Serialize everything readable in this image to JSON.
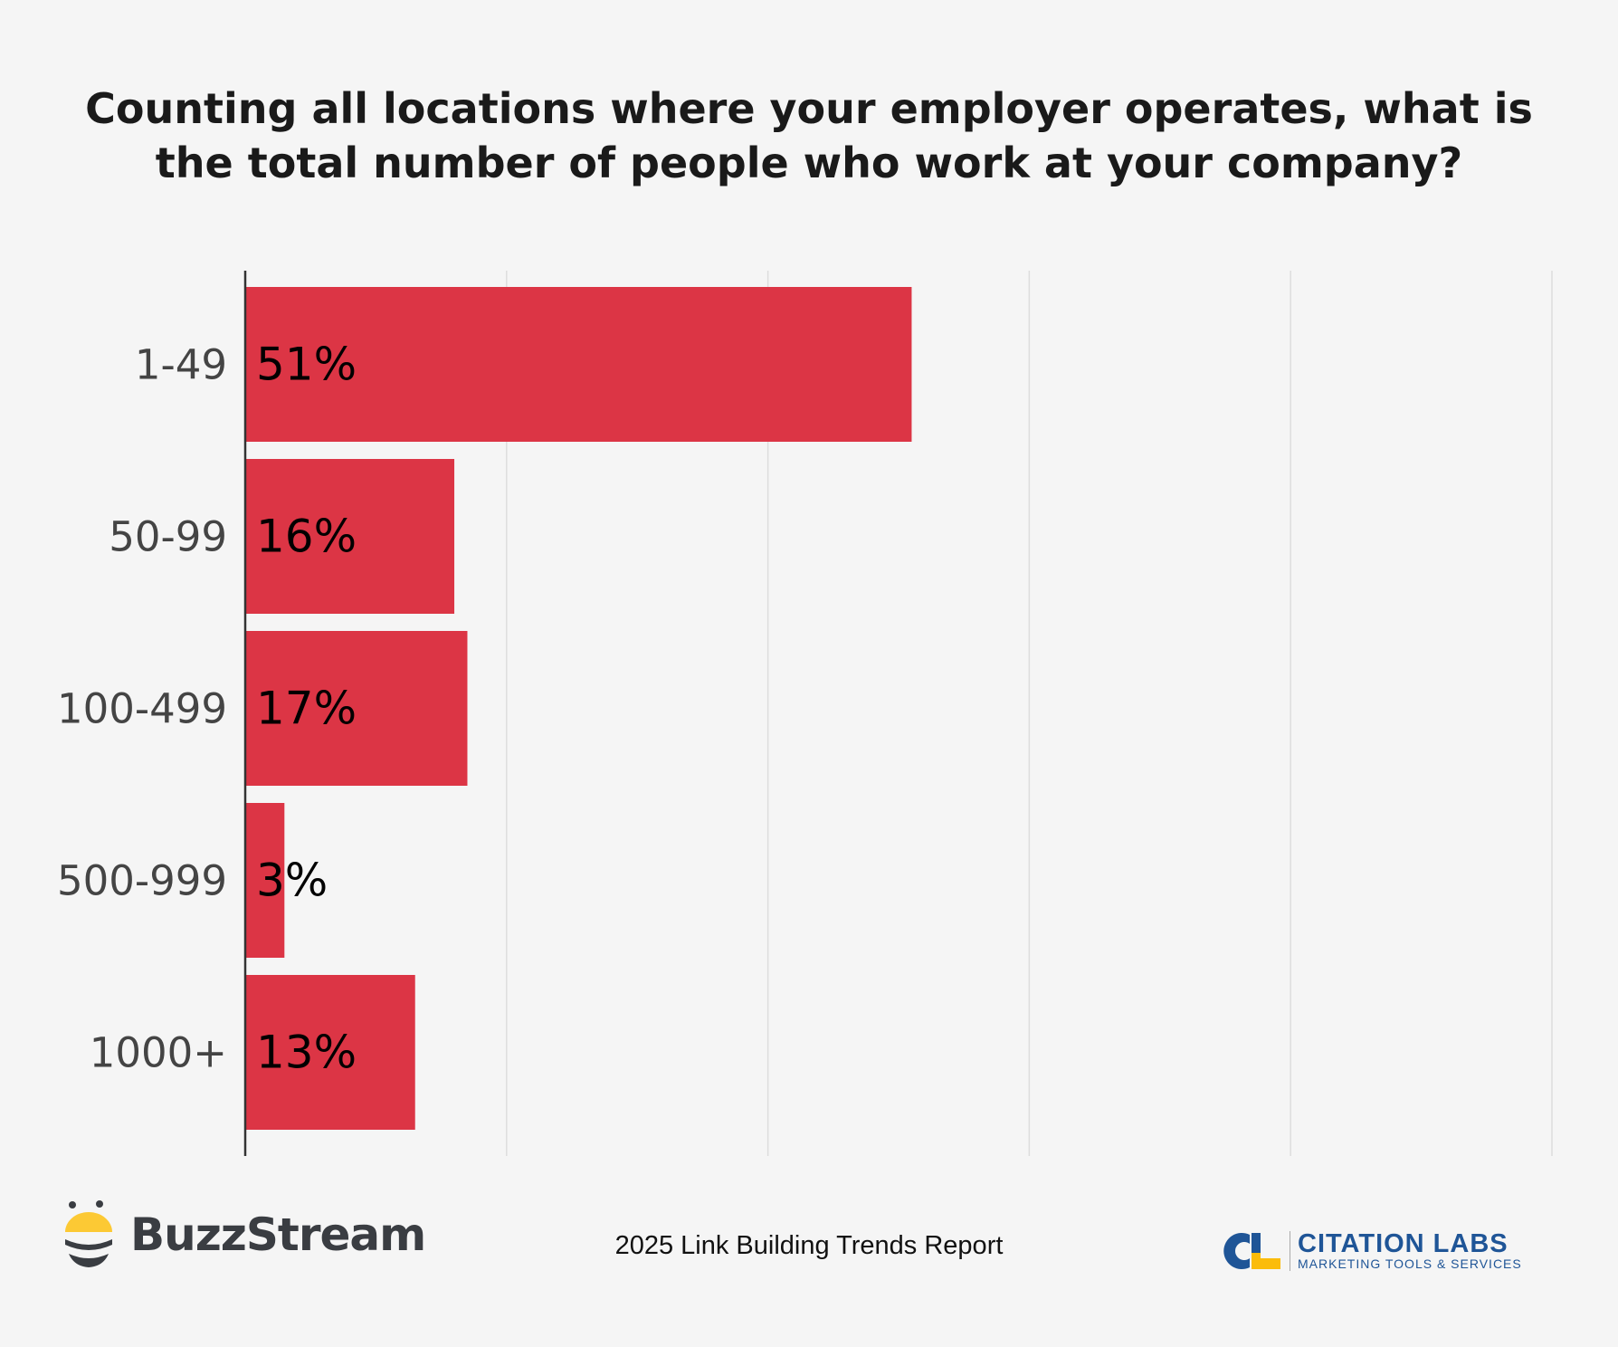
{
  "chart_data": {
    "type": "bar",
    "orientation": "horizontal",
    "title": "Counting all locations where your employer operates, what is the total number of people who work at your company?",
    "categories": [
      "1-49",
      "50-99",
      "100-499",
      "500-999",
      "1000+"
    ],
    "values": [
      51,
      16,
      17,
      3,
      13
    ],
    "data_labels": [
      "51%",
      "16%",
      "17%",
      "3%",
      "13%"
    ],
    "xlim": [
      0,
      100
    ],
    "grid": true,
    "bar_color": "#dc3545",
    "xlabel": "",
    "ylabel": ""
  },
  "footer": {
    "report": "2025 Link Building Trends Report",
    "logo_left": "BuzzStream",
    "logo_right": "CITATION LABS",
    "logo_right_sub": "MARKETING TOOLS & SERVICES"
  }
}
